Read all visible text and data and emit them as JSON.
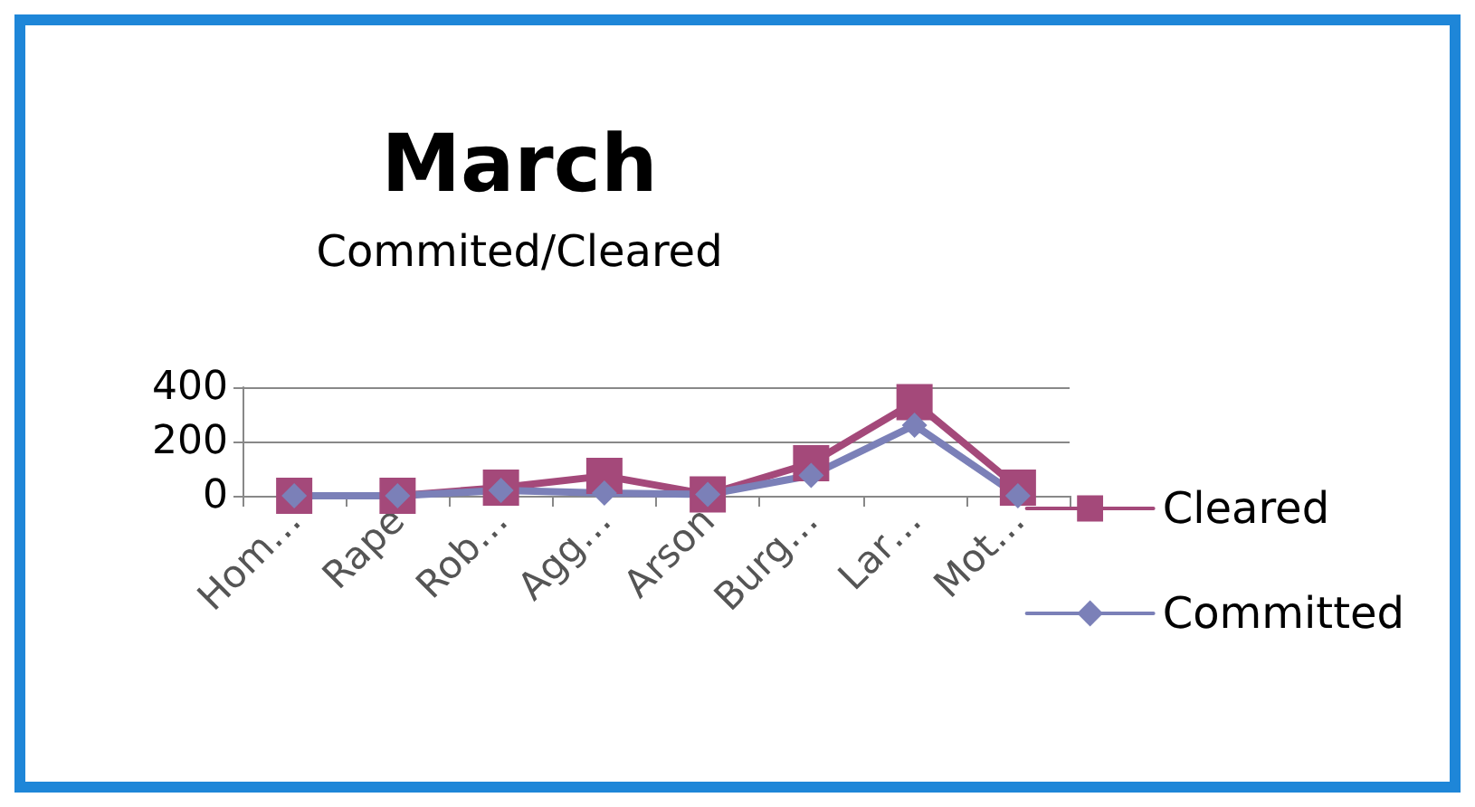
{
  "chart_data": {
    "type": "line",
    "title": "March",
    "subtitle": "Commited/Cleared",
    "categories": [
      "Hom…",
      "Rape",
      "Rob…",
      "Agg…",
      "Arson",
      "Burg…",
      "Lar…",
      "Mot…"
    ],
    "series": [
      {
        "name": "Cleared",
        "color": "#a4497a",
        "marker": "square",
        "values": [
          0,
          0,
          30,
          73,
          5,
          120,
          345,
          30
        ]
      },
      {
        "name": "Committed",
        "color": "#7b80b8",
        "marker": "diamond",
        "values": [
          0,
          0,
          20,
          10,
          5,
          75,
          260,
          0
        ]
      }
    ],
    "ylim": [
      0,
      400
    ],
    "yticks": [
      0,
      200,
      400
    ],
    "grid": "y",
    "legend": "right"
  }
}
